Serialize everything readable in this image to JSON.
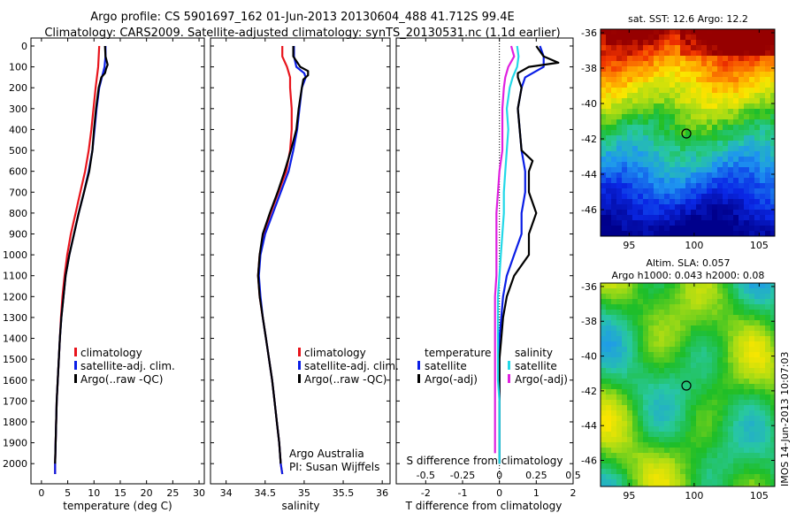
{
  "header": {
    "line1": "Argo profile: CS 5901697_162 01-Jun-2013 20130604_488 41.712S 99.4E",
    "line2": "Climatology: CARS2009. Satellite-adjusted climatology: synTS_20130531.nc (1.1d earlier)"
  },
  "colors": {
    "climatology": "#e8141c",
    "satellite": "#0a1ee6",
    "argo": "#000000",
    "sal_satellite": "#22d8e8",
    "sal_argo": "#e020e0"
  },
  "chart_data": [
    {
      "type": "line",
      "xlabel": "temperature (deg C)",
      "ylabel": "",
      "xlim": [
        -2,
        31
      ],
      "ylim": [
        2080,
        0
      ],
      "x_ticks": [
        "0",
        "5",
        "10",
        "15",
        "20",
        "25",
        "30"
      ],
      "y_ticks": [
        "0",
        "100",
        "200",
        "300",
        "400",
        "500",
        "600",
        "700",
        "800",
        "900",
        "1000",
        "1100",
        "1200",
        "1300",
        "1400",
        "1500",
        "1600",
        "1700",
        "1800",
        "1900",
        "2000"
      ],
      "legend": [
        "climatology",
        "satellite-adj. clim.",
        "Argo(..raw -QC)"
      ],
      "series": [
        {
          "name": "climatology",
          "depth": [
            0,
            50,
            100,
            200,
            300,
            400,
            500,
            600,
            700,
            800,
            900,
            1000,
            1100,
            1200,
            1300,
            1400,
            1500,
            1600,
            1700,
            1800,
            1900,
            2000,
            2050
          ],
          "values": [
            11.0,
            10.9,
            10.8,
            10.3,
            9.9,
            9.5,
            9.0,
            8.3,
            7.4,
            6.5,
            5.6,
            4.9,
            4.4,
            4.0,
            3.7,
            3.5,
            3.3,
            3.1,
            2.9,
            2.8,
            2.7,
            2.6,
            2.6
          ]
        },
        {
          "name": "satellite-adj. clim.",
          "depth": [
            0,
            50,
            100,
            200,
            300,
            400,
            500,
            600,
            700,
            800,
            900,
            1000,
            1100,
            1200,
            1300,
            1400,
            1500,
            1600,
            1700,
            1800,
            1900,
            2000,
            2050
          ],
          "values": [
            12.2,
            12.2,
            12.0,
            11.0,
            10.5,
            10.1,
            9.7,
            9.0,
            8.1,
            7.1,
            6.2,
            5.3,
            4.6,
            4.2,
            3.8,
            3.5,
            3.3,
            3.1,
            2.9,
            2.8,
            2.7,
            2.6,
            2.6
          ]
        },
        {
          "name": "Argo(..raw -QC)",
          "depth": [
            0,
            50,
            90,
            110,
            130,
            150,
            200,
            300,
            400,
            500,
            600,
            700,
            800,
            900,
            1000,
            1100,
            1200,
            1300,
            1400,
            1500,
            1600,
            1700,
            1800,
            1900,
            2000
          ],
          "values": [
            12.1,
            12.2,
            12.6,
            12.3,
            12.1,
            11.4,
            10.9,
            10.4,
            10.0,
            9.7,
            9.1,
            8.1,
            7.1,
            6.2,
            5.3,
            4.6,
            4.2,
            3.8,
            3.5,
            3.3,
            3.1,
            2.9,
            2.8,
            2.7,
            2.6
          ]
        }
      ]
    },
    {
      "type": "line",
      "xlabel": "salinity",
      "ylabel": "",
      "xlim": [
        33.8,
        36.1
      ],
      "ylim": [
        2080,
        0
      ],
      "x_ticks": [
        "34",
        "34.5",
        "35",
        "35.5",
        "36"
      ],
      "legend": [
        "climatology",
        "satellite-adj. clim.",
        "Argo(..raw -QC)"
      ],
      "annotations": [
        "Argo Australia",
        "PI: Susan Wijffels"
      ],
      "series": [
        {
          "name": "climatology",
          "depth": [
            0,
            50,
            100,
            150,
            200,
            300,
            400,
            500,
            600,
            700,
            800,
            900,
            1000,
            1100,
            1200,
            1300,
            1400,
            1500,
            1600,
            1700,
            1800,
            1900,
            2000,
            2050
          ],
          "values": [
            34.72,
            34.72,
            34.78,
            34.82,
            34.82,
            34.84,
            34.84,
            34.82,
            34.77,
            34.67,
            34.57,
            34.48,
            34.43,
            34.41,
            34.43,
            34.47,
            34.51,
            34.55,
            34.59,
            34.62,
            34.65,
            34.68,
            34.7,
            34.72
          ]
        },
        {
          "name": "satellite-adj. clim.",
          "depth": [
            0,
            50,
            100,
            130,
            150,
            200,
            300,
            400,
            500,
            600,
            700,
            800,
            900,
            1000,
            1100,
            1200,
            1300,
            1400,
            1500,
            1600,
            1700,
            1800,
            1900,
            2000,
            2050
          ],
          "values": [
            34.87,
            34.87,
            34.9,
            35.0,
            35.02,
            34.97,
            34.94,
            34.91,
            34.86,
            34.8,
            34.7,
            34.6,
            34.5,
            34.44,
            34.42,
            34.44,
            34.47,
            34.51,
            34.55,
            34.59,
            34.62,
            34.65,
            34.68,
            34.7,
            34.72
          ]
        },
        {
          "name": "Argo(..raw -QC)",
          "depth": [
            0,
            50,
            100,
            120,
            140,
            160,
            200,
            300,
            400,
            500,
            600,
            700,
            800,
            900,
            1000,
            1100,
            1200,
            1300,
            1400,
            1500,
            1600,
            1700,
            1800,
            1900,
            2000
          ],
          "values": [
            34.86,
            34.86,
            34.95,
            35.05,
            35.05,
            34.99,
            34.97,
            34.93,
            34.9,
            34.83,
            34.75,
            34.66,
            34.56,
            34.47,
            34.43,
            34.41,
            34.43,
            34.47,
            34.51,
            34.55,
            34.59,
            34.62,
            34.65,
            34.68,
            34.7
          ]
        }
      ]
    },
    {
      "type": "line",
      "xlabel": "T difference from climatology",
      "title_bottom": "S difference from climatology",
      "xlim": [
        -2.8,
        2.0
      ],
      "ylim": [
        2080,
        0
      ],
      "x_ticks": [
        "-2",
        "-1",
        "0",
        "1",
        "2"
      ],
      "x_ticks_top": [
        "-0.5",
        "-0.25",
        "0",
        "0.25",
        "0.5"
      ],
      "legend_titles": [
        "temperature",
        "salinity"
      ],
      "legend": [
        "satellite",
        "Argo(-adj)",
        "satellite",
        "Argo(-adj)"
      ],
      "series": [
        {
          "name": "satellite",
          "group": "temperature",
          "depth": [
            0,
            50,
            100,
            150,
            200,
            300,
            400,
            500,
            600,
            700,
            800,
            900,
            1000,
            1100,
            1200,
            1300,
            1400,
            1500,
            1600,
            1700,
            1800,
            1900,
            2000
          ],
          "values": [
            1.1,
            1.2,
            1.2,
            0.7,
            0.6,
            0.5,
            0.55,
            0.6,
            0.7,
            0.7,
            0.6,
            0.6,
            0.4,
            0.2,
            0.1,
            0.05,
            0.0,
            0.0,
            0.0,
            0.0,
            0.0,
            0.0,
            0.0
          ]
        },
        {
          "name": "Argo(-adj)",
          "group": "temperature",
          "depth": [
            0,
            50,
            80,
            100,
            130,
            150,
            200,
            300,
            400,
            500,
            550,
            600,
            700,
            800,
            900,
            1000,
            1100,
            1200,
            1300,
            1400,
            1500,
            1600,
            1700,
            1800,
            1900,
            2000
          ],
          "values": [
            1.0,
            1.2,
            1.6,
            0.8,
            0.5,
            0.5,
            0.6,
            0.5,
            0.55,
            0.6,
            0.9,
            0.8,
            0.8,
            1.0,
            0.8,
            0.8,
            0.4,
            0.2,
            0.1,
            0.05,
            0.0,
            0.0,
            0.0,
            0.0,
            0.0,
            0.0
          ]
        },
        {
          "name": "satellite",
          "group": "salinity",
          "depth": [
            0,
            50,
            100,
            150,
            200,
            300,
            400,
            500,
            600,
            700,
            800,
            900,
            1000,
            1100,
            1200,
            1300,
            1400,
            1500,
            1600,
            1700,
            1800,
            1900,
            2000
          ],
          "values": [
            0.12,
            0.13,
            0.12,
            0.09,
            0.07,
            0.05,
            0.06,
            0.05,
            0.04,
            0.03,
            0.03,
            0.02,
            0.01,
            0.0,
            -0.01,
            -0.01,
            -0.01,
            -0.01,
            -0.01,
            0.0,
            0.0,
            0.0,
            0.0
          ]
        },
        {
          "name": "Argo(-adj)",
          "group": "salinity",
          "depth": [
            0,
            50,
            100,
            150,
            200,
            300,
            400,
            500,
            600,
            700,
            800,
            900,
            1000,
            1100,
            1200,
            1300,
            1400,
            1500,
            1600,
            1700,
            1800,
            1900,
            1950
          ],
          "values": [
            0.08,
            0.1,
            0.06,
            0.04,
            0.03,
            0.02,
            0.02,
            0.02,
            0.0,
            -0.01,
            -0.02,
            -0.02,
            -0.02,
            -0.02,
            -0.03,
            -0.03,
            -0.03,
            -0.03,
            -0.03,
            -0.03,
            -0.03,
            -0.03,
            -0.03
          ]
        }
      ]
    },
    {
      "type": "heatmap",
      "title": "sat. SST: 12.6 Argo: 12.2",
      "x_ticks": [
        "95",
        "100",
        "105"
      ],
      "y_ticks": [
        "-36",
        "-38",
        "-40",
        "-42",
        "-44",
        "-46"
      ],
      "xlim": [
        92.8,
        106.2
      ],
      "ylim": [
        -47.5,
        -35.8
      ],
      "argo_marker": [
        99.4,
        -41.7
      ]
    },
    {
      "type": "heatmap",
      "title": "Altim. SLA: 0.057",
      "subtitle": "Argo h1000: 0.043 h2000: 0.08",
      "x_ticks": [
        "95",
        "100",
        "105"
      ],
      "y_ticks": [
        "-36",
        "-38",
        "-40",
        "-42",
        "-44",
        "-46"
      ],
      "xlim": [
        92.8,
        106.2
      ],
      "ylim": [
        -47.5,
        -35.8
      ],
      "argo_marker": [
        99.4,
        -41.7
      ]
    }
  ],
  "stamp": "IMOS 14-Jun-2013 10:07:03"
}
